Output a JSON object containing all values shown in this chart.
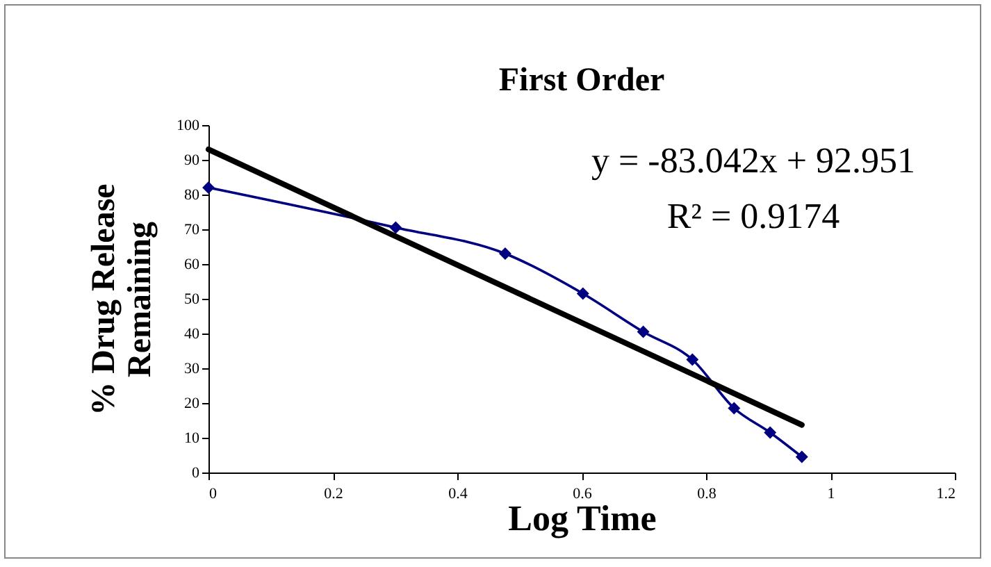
{
  "chart_data": {
    "type": "line",
    "title": "First Order",
    "xlabel": "Log Time",
    "ylabel": "% Drug Release Remaining",
    "x": [
      0,
      0.301,
      0.477,
      0.602,
      0.699,
      0.778,
      0.845,
      0.903,
      0.954
    ],
    "series": [
      {
        "color": "#000080",
        "values": [
          82,
          70.5,
          63,
          51.5,
          40.5,
          32.5,
          18.5,
          11.5,
          4.5
        ]
      },
      {
        "type": "line",
        "color": "#000000",
        "marker": "none",
        "x": [
          0,
          0.954
        ],
        "values": [
          93,
          13.7
        ]
      }
    ],
    "annotations": [
      "y = -83.042x + 92.951",
      "R² = 0.9174"
    ],
    "xlim": [
      0,
      1.2
    ],
    "xticks": [
      0,
      0.2,
      0.4,
      0.6,
      0.8,
      1,
      1.2
    ],
    "ylim": [
      0,
      100
    ],
    "yticks": [
      0,
      10,
      20,
      30,
      40,
      50,
      60,
      70,
      80,
      90,
      100
    ],
    "marker": "diamond",
    "grid": false
  }
}
